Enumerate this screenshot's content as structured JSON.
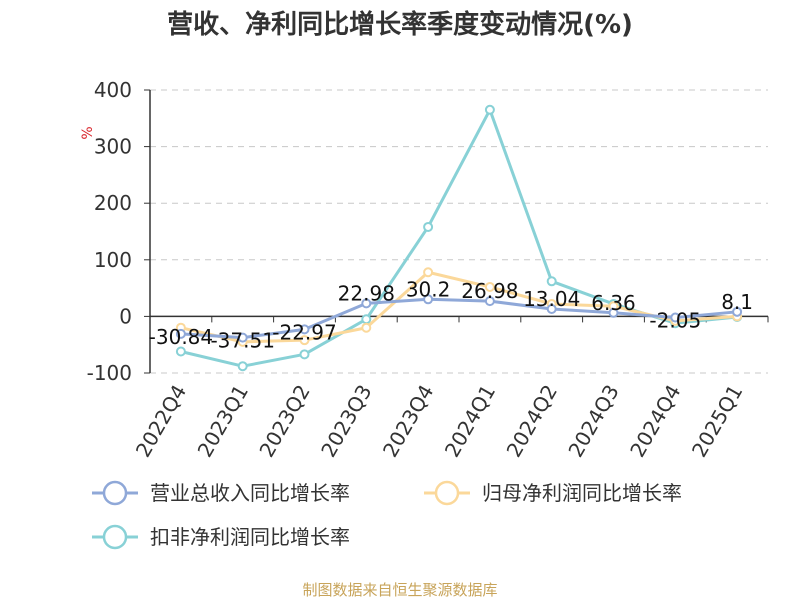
{
  "chart_data": {
    "type": "line",
    "title": "营收、净利同比增长率季度变动情况(%)",
    "ylabel": "%",
    "ylim": [
      -100,
      400
    ],
    "yticks": [
      -100,
      0,
      100,
      200,
      300,
      400
    ],
    "grid": true,
    "legend_position": "bottom",
    "categories": [
      "2022Q4",
      "2023Q1",
      "2023Q2",
      "2023Q3",
      "2023Q4",
      "2024Q1",
      "2024Q2",
      "2024Q3",
      "2024Q4",
      "2025Q1"
    ],
    "series": [
      {
        "name": "营业总收入同比增长率",
        "color": "#8fa8d8",
        "values": [
          -30.84,
          -37.51,
          -22.97,
          22.98,
          30.2,
          26.98,
          13.04,
          6.36,
          -2.05,
          8.1
        ],
        "labels": [
          "-30.84",
          "-37.51",
          "-22.97",
          "22.98",
          "30.2",
          "26.98",
          "13.04",
          "6.36",
          "-2.05",
          "8.1"
        ]
      },
      {
        "name": "归母净利润同比增长率",
        "color": "#fbd89a",
        "values": [
          -20,
          -45,
          -42,
          -20,
          78,
          52,
          22,
          18,
          -8,
          0
        ]
      },
      {
        "name": "扣非净利润同比增长率",
        "color": "#88d1d6",
        "values": [
          -62,
          -88,
          -67,
          -5,
          158,
          365,
          62,
          22,
          -12,
          -1
        ]
      }
    ]
  },
  "footer": {
    "source": "制图数据来自恒生聚源数据库"
  }
}
